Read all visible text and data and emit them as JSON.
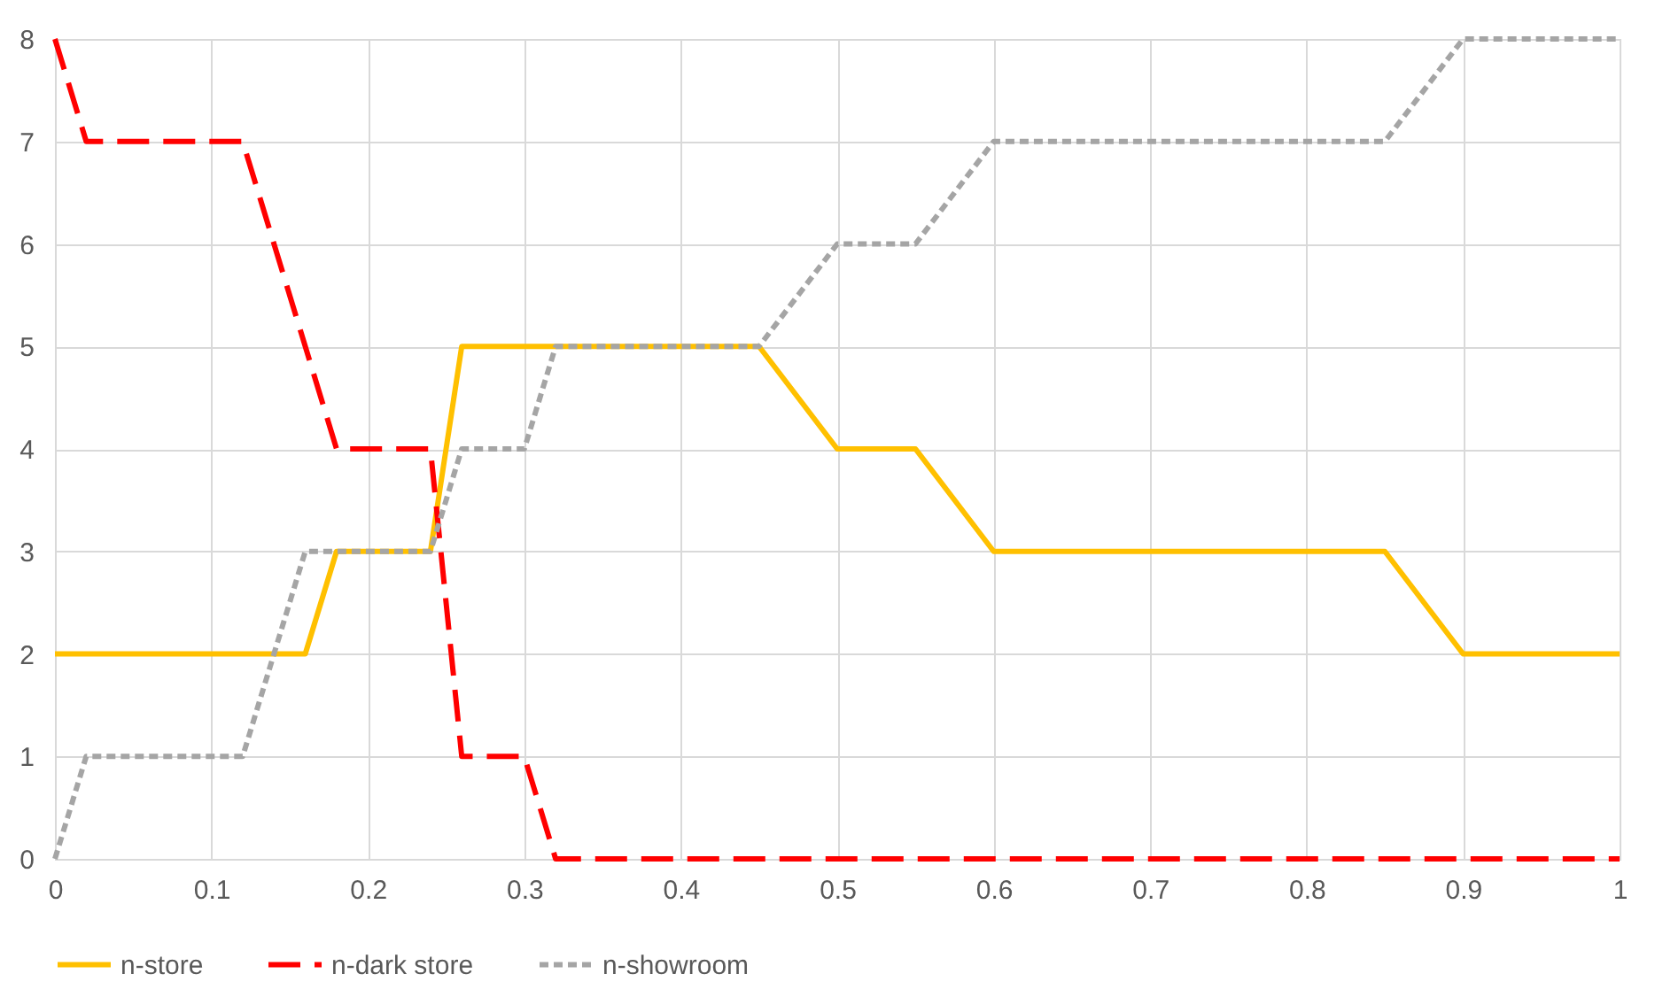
{
  "chart_data": {
    "type": "line",
    "xlim": [
      0,
      1
    ],
    "xticks": [
      0,
      0.1,
      0.2,
      0.3,
      0.4,
      0.5,
      0.6,
      0.7,
      0.8,
      0.9,
      1
    ],
    "ylim": [
      0,
      8
    ],
    "yticks": [
      0,
      1,
      2,
      3,
      4,
      5,
      6,
      7,
      8
    ],
    "grid": true,
    "legend": "bottom",
    "marker": "none",
    "series": [
      {
        "name": "n-store",
        "color": "#ffc000",
        "line_style": "solid",
        "x": [
          0,
          0.16,
          0.18,
          0.24,
          0.26,
          0.45,
          0.5,
          0.55,
          0.6,
          0.85,
          0.9,
          1
        ],
        "values": [
          2,
          2,
          3,
          3,
          5,
          5,
          4,
          4,
          3,
          3,
          2,
          2
        ]
      },
      {
        "name": "n-dark store",
        "color": "#ff0000",
        "line_style": "dashed",
        "x": [
          0,
          0.02,
          0.12,
          0.18,
          0.24,
          0.26,
          0.3,
          0.32,
          1
        ],
        "values": [
          8,
          7,
          7,
          4,
          4,
          1,
          1,
          0,
          0
        ]
      },
      {
        "name": "n-showroom",
        "color": "#a5a5a5",
        "line_style": "dotted",
        "x": [
          0,
          0.02,
          0.12,
          0.16,
          0.24,
          0.26,
          0.3,
          0.32,
          0.45,
          0.5,
          0.55,
          0.6,
          0.85,
          0.9,
          1
        ],
        "values": [
          0,
          1,
          1,
          3,
          3,
          4,
          4,
          5,
          5,
          6,
          6,
          7,
          7,
          8,
          8
        ]
      }
    ]
  }
}
